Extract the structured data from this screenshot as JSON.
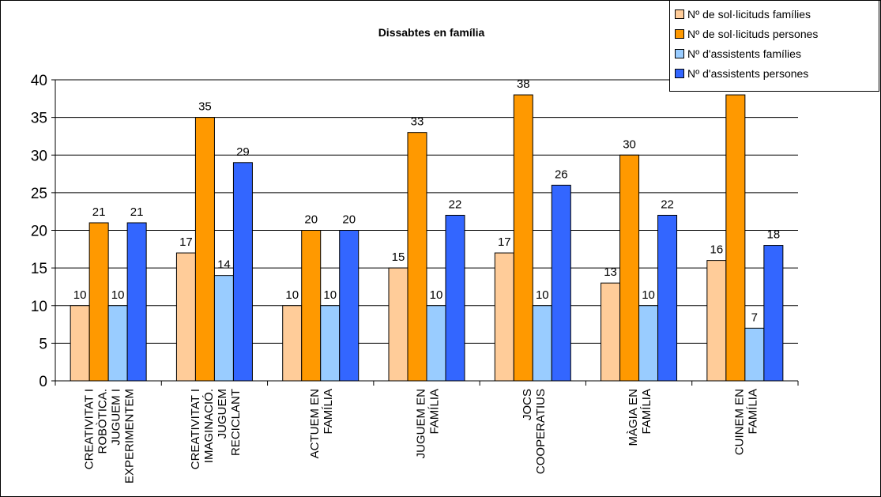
{
  "chart_data": {
    "type": "bar",
    "title": "Dissabtes en família",
    "xlabel": "",
    "ylabel": "",
    "ylim": [
      0,
      40
    ],
    "yticks": [
      0,
      5,
      10,
      15,
      20,
      25,
      30,
      35,
      40
    ],
    "grid": true,
    "legend_position": "top-right",
    "categories": [
      [
        "CREATIVITAT I",
        "ROBÒTICA.",
        "JUGUEM I",
        "EXPERIMENTEM"
      ],
      [
        "CREATIVITAT I",
        "IMAGINACIÓ.",
        "JUGUEM",
        "RECICLANT"
      ],
      [
        "ACTUEM EN",
        "FAMÍLIA"
      ],
      [
        "JUGUEM EN",
        "FAMÍLIA"
      ],
      [
        "JOCS",
        "COOPERATIUS"
      ],
      [
        "MÀGIA EN",
        "FAMÍLIA"
      ],
      [
        "CUINEM EN",
        "FAMÍLIA"
      ]
    ],
    "series": [
      {
        "name": "Nº de sol·licituds famílies",
        "color": "#FFCC99",
        "values": [
          10,
          17,
          10,
          15,
          17,
          13,
          16
        ]
      },
      {
        "name": "Nº de sol·licituds persones",
        "color": "#FF9900",
        "values": [
          21,
          35,
          20,
          33,
          38,
          30,
          38
        ]
      },
      {
        "name": "Nº d'assistents famílies",
        "color": "#99CCFF",
        "values": [
          10,
          14,
          10,
          10,
          10,
          10,
          7
        ]
      },
      {
        "name": "Nº d'assistents persones",
        "color": "#3366FF",
        "values": [
          21,
          29,
          20,
          22,
          26,
          22,
          18
        ]
      }
    ]
  }
}
